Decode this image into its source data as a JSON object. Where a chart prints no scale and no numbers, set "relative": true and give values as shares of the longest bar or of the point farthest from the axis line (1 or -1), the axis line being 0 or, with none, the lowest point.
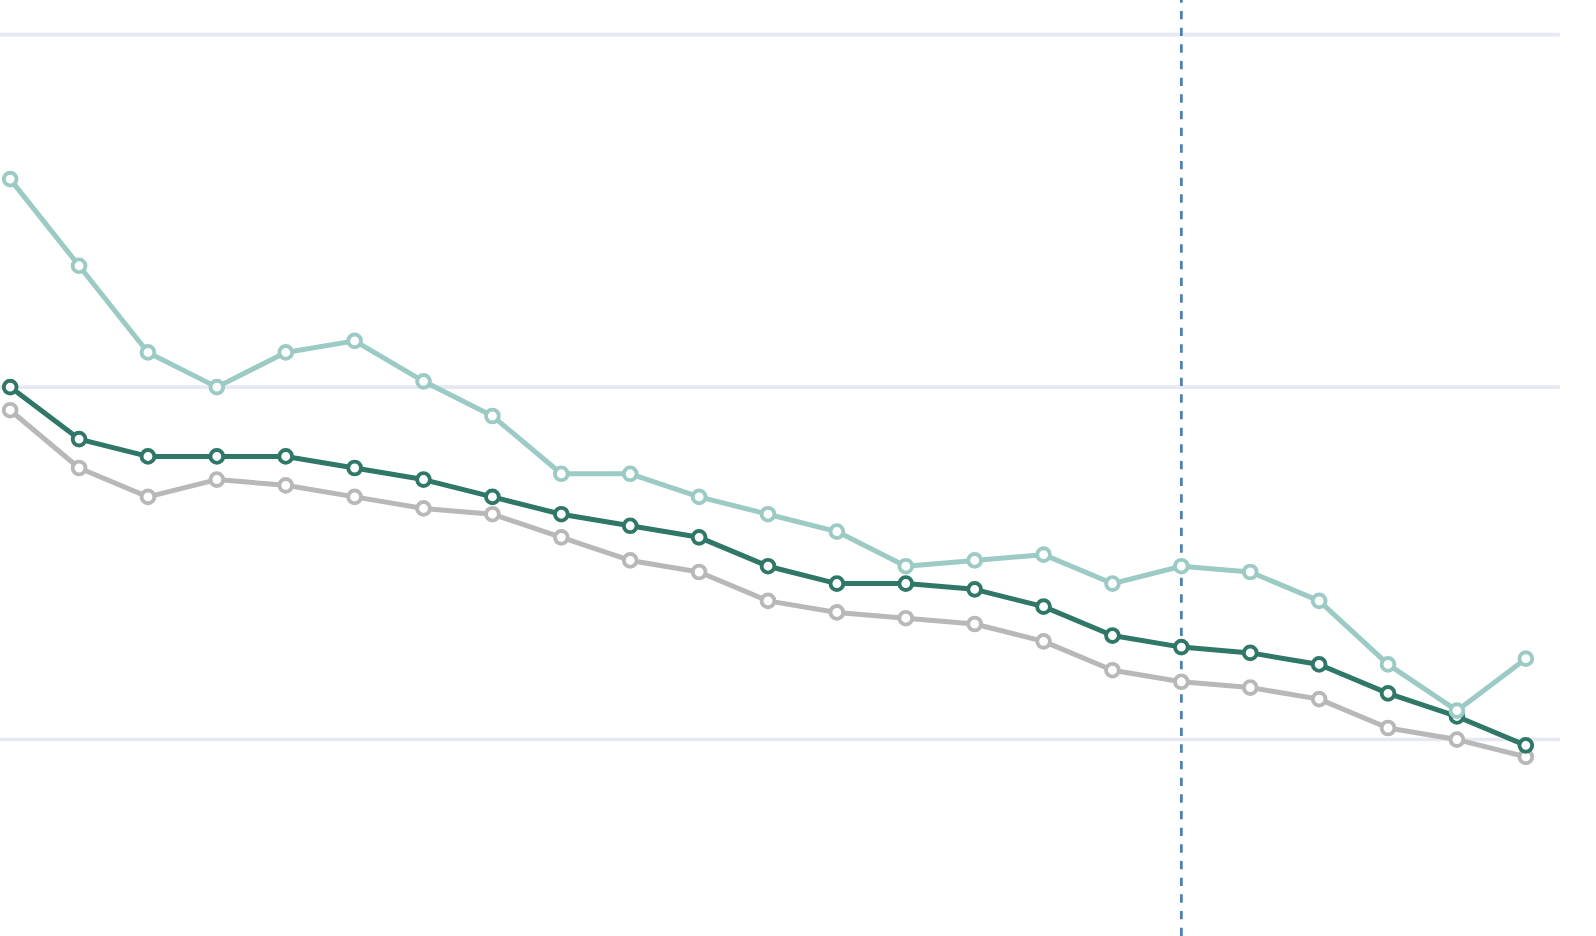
{
  "chart_data": {
    "type": "line",
    "relative": true,
    "categories": [
      null,
      null,
      null,
      null,
      null,
      null,
      null,
      null,
      null,
      null,
      null,
      null,
      null,
      null,
      null,
      null,
      null,
      null,
      null,
      null,
      null,
      null,
      null
    ],
    "series": [
      {
        "color": "#b8b8b8",
        "values": [
          0.6,
          0.5,
          0.45,
          0.48,
          0.47,
          0.45,
          0.43,
          0.42,
          0.38,
          0.34,
          0.32,
          0.27,
          0.25,
          0.24,
          0.23,
          0.2,
          0.15,
          0.13,
          0.12,
          0.1,
          0.05,
          0.03,
          0.0
        ]
      },
      {
        "color": "#2f7767",
        "values": [
          0.64,
          0.55,
          0.52,
          0.52,
          0.52,
          0.5,
          0.48,
          0.45,
          0.42,
          0.4,
          0.38,
          0.33,
          0.3,
          0.3,
          0.29,
          0.26,
          0.21,
          0.19,
          0.18,
          0.16,
          0.11,
          0.07,
          0.02
        ]
      },
      {
        "color": "#9ccac4",
        "values": [
          1.0,
          0.85,
          0.7,
          0.64,
          0.7,
          0.72,
          0.65,
          0.59,
          0.49,
          0.49,
          0.45,
          0.42,
          0.39,
          0.33,
          0.34,
          0.35,
          0.3,
          0.33,
          0.32,
          0.27,
          0.16,
          0.08,
          0.17
        ]
      }
    ],
    "ref_lines": [
      {
        "axis": "y",
        "value": 0.03,
        "color": "#e6e8f2",
        "line_style": "solid"
      },
      {
        "axis": "y",
        "value": 0.64,
        "color": "#e6e8f2",
        "line_style": "solid"
      },
      {
        "axis": "y",
        "value": 1.25,
        "color": "#e6e8f2",
        "line_style": "solid"
      }
    ],
    "marker": "circle",
    "line_style": "solid"
  }
}
